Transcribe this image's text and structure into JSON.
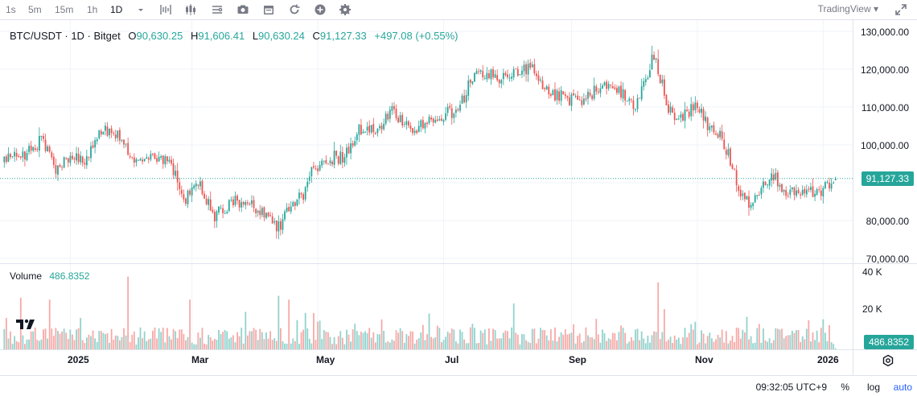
{
  "toolbar": {
    "intervals": [
      "1s",
      "5m",
      "15m",
      "1h",
      "1D"
    ],
    "active_interval": "1D",
    "icons": [
      "chevron-down-icon",
      "bar-chart-icon",
      "candles-icon",
      "indicators-icon",
      "camera-icon",
      "calendar-icon",
      "replay-icon",
      "plus-icon",
      "settings-icon"
    ],
    "provider": "TradingView",
    "provider_caret": "▾"
  },
  "legend": {
    "symbol": "BTC/USDT · 1D · Bitget",
    "open_label": "O",
    "open": "90,630.25",
    "high_label": "H",
    "high": "91,606.41",
    "low_label": "L",
    "low": "90,630.24",
    "close_label": "C",
    "close": "91,127.33",
    "change": "+497.08 (+0.55%)"
  },
  "volume_legend": {
    "label": "Volume",
    "value": "486.8352"
  },
  "price_axis": {
    "ticks": [
      "130,000.00",
      "120,000.00",
      "110,000.00",
      "100,000.00",
      "80,000.00",
      "70,000.00"
    ],
    "last_price_badge": "91,127.33"
  },
  "volume_axis": {
    "ticks": [
      "40 K",
      "20 K"
    ],
    "last_volume_badge": "486.8352"
  },
  "time_axis": {
    "ticks": [
      "2025",
      "Mar",
      "May",
      "Jul",
      "Sep",
      "Nov",
      "2026"
    ]
  },
  "bottom_bar": {
    "clock": "09:32:05 UTC+9",
    "percent": "%",
    "log": "log",
    "auto": "auto"
  },
  "colors": {
    "up": "#26a69a",
    "down": "#ef5350",
    "up_volume": "#92d2cc",
    "down_volume": "#f7a9a7",
    "grid": "#f0f3fa",
    "badge": "#26a69a"
  },
  "chart_data": {
    "type": "candlestick",
    "title": "BTC/USDT · 1D · Bitget",
    "ylim": [
      69000,
      132000
    ],
    "volume_ylim": [
      0,
      42000
    ],
    "last_close": 91127.33,
    "date_range": [
      "2024-11-30",
      "2026-01-01"
    ],
    "month_start_index": {
      "2025": 32,
      "Mar": 91,
      "May": 152,
      "Jul": 213,
      "Sep": 275,
      "Nov": 336,
      "2026": 397
    },
    "anchor_closes": [
      [
        0,
        96500
      ],
      [
        10,
        97000
      ],
      [
        18,
        101500
      ],
      [
        25,
        94000
      ],
      [
        32,
        97500
      ],
      [
        40,
        96000
      ],
      [
        48,
        104500
      ],
      [
        55,
        103000
      ],
      [
        62,
        97000
      ],
      [
        70,
        97500
      ],
      [
        80,
        96000
      ],
      [
        88,
        86000
      ],
      [
        95,
        89000
      ],
      [
        102,
        81000
      ],
      [
        110,
        85000
      ],
      [
        118,
        84000
      ],
      [
        126,
        82500
      ],
      [
        133,
        78000
      ],
      [
        140,
        84500
      ],
      [
        145,
        86500
      ],
      [
        150,
        94000
      ],
      [
        157,
        96500
      ],
      [
        165,
        97000
      ],
      [
        172,
        104000
      ],
      [
        180,
        103500
      ],
      [
        188,
        109000
      ],
      [
        196,
        104000
      ],
      [
        205,
        106000
      ],
      [
        212,
        108000
      ],
      [
        220,
        109000
      ],
      [
        226,
        117000
      ],
      [
        233,
        119000
      ],
      [
        240,
        117500
      ],
      [
        248,
        119000
      ],
      [
        255,
        120500
      ],
      [
        262,
        114000
      ],
      [
        270,
        113000
      ],
      [
        278,
        111000
      ],
      [
        286,
        114000
      ],
      [
        293,
        115500
      ],
      [
        300,
        114000
      ],
      [
        306,
        110000
      ],
      [
        311,
        118000
      ],
      [
        315,
        124000
      ],
      [
        320,
        113500
      ],
      [
        324,
        107000
      ],
      [
        330,
        108000
      ],
      [
        336,
        110000
      ],
      [
        342,
        104000
      ],
      [
        347,
        103000
      ],
      [
        352,
        96000
      ],
      [
        358,
        86000
      ],
      [
        362,
        84500
      ],
      [
        366,
        87000
      ],
      [
        372,
        92500
      ],
      [
        378,
        88000
      ],
      [
        385,
        87500
      ],
      [
        392,
        87200
      ],
      [
        398,
        88500
      ],
      [
        403,
        91127
      ]
    ],
    "volume_spikes": [
      [
        8,
        27000
      ],
      [
        22,
        26000
      ],
      [
        60,
        38000
      ],
      [
        90,
        26000
      ],
      [
        133,
        28000
      ],
      [
        138,
        26000
      ],
      [
        150,
        19000
      ],
      [
        247,
        24000
      ],
      [
        317,
        35000
      ],
      [
        320,
        21000
      ],
      [
        360,
        17000
      ]
    ]
  }
}
